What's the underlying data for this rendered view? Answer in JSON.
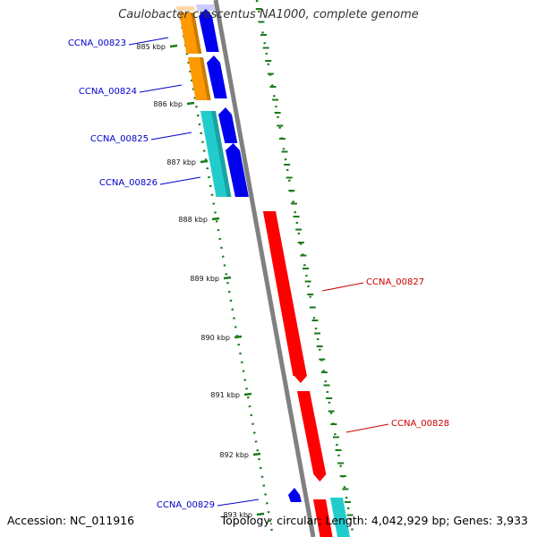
{
  "title": "Caulobacter crescentus NA1000, complete genome",
  "footer": {
    "accession": "Accession: NC_011916",
    "summary": "Topology: circular; Length: 4,042,929 bp; Genes: 3,933"
  },
  "colors": {
    "backbone": "#808080",
    "tick": "#1b7a1b",
    "forward_cds": "#0000ee",
    "reverse_cds": "#ff0000",
    "label_blue": "#0000cc",
    "label_red": "#cc0000",
    "orange": "#ff9900",
    "cyan": "#22cccc"
  },
  "ticks": [
    "885 kbp",
    "886 kbp",
    "887 kbp",
    "888 kbp",
    "889 kbp",
    "890 kbp",
    "891 kbp",
    "892 kbp",
    "893 kbp"
  ],
  "genes": [
    {
      "label": "CCNA_00823",
      "strand": "forward"
    },
    {
      "label": "CCNA_00824",
      "strand": "forward"
    },
    {
      "label": "CCNA_00825",
      "strand": "forward"
    },
    {
      "label": "CCNA_00826",
      "strand": "forward"
    },
    {
      "label": "CCNA_00827",
      "strand": "reverse"
    },
    {
      "label": "CCNA_00828",
      "strand": "reverse"
    },
    {
      "label": "CCNA_00829",
      "strand": "forward"
    }
  ]
}
